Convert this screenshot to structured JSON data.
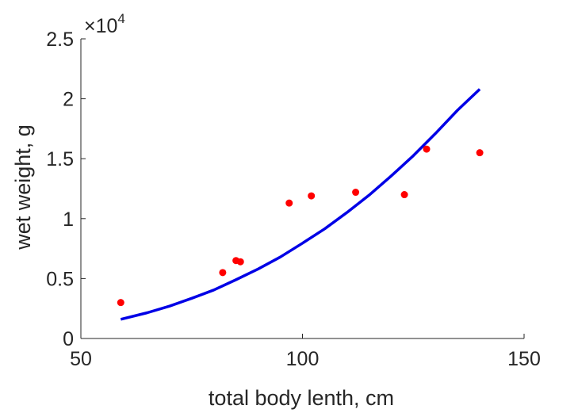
{
  "chart_data": {
    "type": "scatter",
    "xlabel": "total body lenth, cm",
    "ylabel": "wet weight, g",
    "xlim": [
      50,
      150
    ],
    "ylim": [
      0,
      25000
    ],
    "x_ticks": [
      50,
      100,
      150
    ],
    "x_tick_labels": [
      "50",
      "100",
      "150"
    ],
    "y_ticks": [
      0,
      5000,
      10000,
      15000,
      20000,
      25000
    ],
    "y_tick_labels": [
      "0",
      "0.5",
      "1",
      "1.5",
      "2",
      "2.5"
    ],
    "y_exponent_label": "×10",
    "y_exponent_power": "4",
    "grid": false,
    "series": [
      {
        "type": "scatter",
        "color": "#ff0000",
        "points": [
          {
            "x": 59,
            "y": 3000
          },
          {
            "x": 82,
            "y": 5500
          },
          {
            "x": 85,
            "y": 6500
          },
          {
            "x": 86,
            "y": 6400
          },
          {
            "x": 97,
            "y": 11300
          },
          {
            "x": 102,
            "y": 11900
          },
          {
            "x": 112,
            "y": 12200
          },
          {
            "x": 123,
            "y": 12000
          },
          {
            "x": 128,
            "y": 15800
          },
          {
            "x": 140,
            "y": 15500
          }
        ]
      },
      {
        "type": "line",
        "color": "#0000e6",
        "points": [
          {
            "x": 59,
            "y": 1600
          },
          {
            "x": 65,
            "y": 2150
          },
          {
            "x": 70,
            "y": 2700
          },
          {
            "x": 75,
            "y": 3350
          },
          {
            "x": 80,
            "y": 4050
          },
          {
            "x": 85,
            "y": 4900
          },
          {
            "x": 90,
            "y": 5800
          },
          {
            "x": 95,
            "y": 6800
          },
          {
            "x": 100,
            "y": 7950
          },
          {
            "x": 105,
            "y": 9150
          },
          {
            "x": 110,
            "y": 10500
          },
          {
            "x": 115,
            "y": 11950
          },
          {
            "x": 120,
            "y": 13550
          },
          {
            "x": 125,
            "y": 15250
          },
          {
            "x": 130,
            "y": 17100
          },
          {
            "x": 135,
            "y": 19050
          },
          {
            "x": 140,
            "y": 20800
          }
        ]
      }
    ]
  }
}
